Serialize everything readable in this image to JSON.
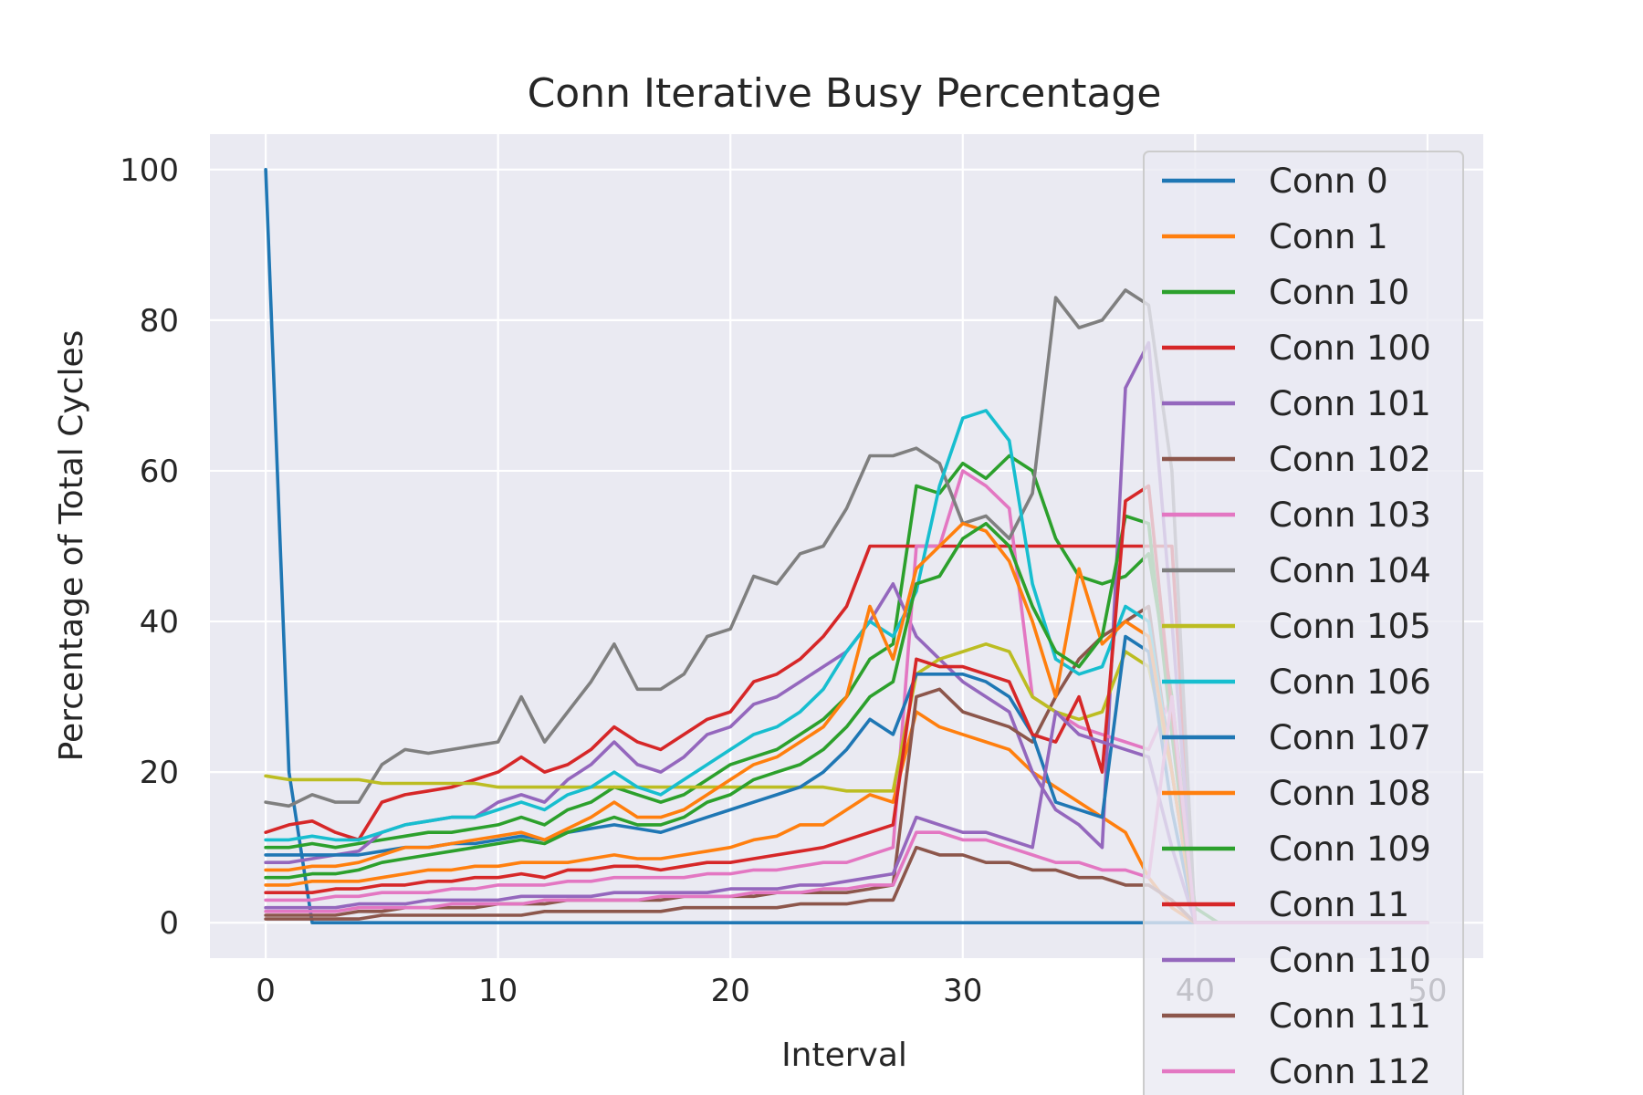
{
  "chart_data": {
    "type": "line",
    "title": "Conn Iterative Busy Percentage",
    "xlabel": "Interval",
    "ylabel": "Percentage of Total Cycles",
    "xlim": [
      -2.4,
      52.4
    ],
    "ylim": [
      -4.7,
      104.7
    ],
    "xticks": [
      0,
      10,
      20,
      30,
      40,
      50
    ],
    "yticks": [
      0,
      20,
      40,
      60,
      80,
      100
    ],
    "grid": true,
    "legend_position": "right",
    "x": [
      0,
      1,
      2,
      3,
      4,
      5,
      6,
      7,
      8,
      9,
      10,
      11,
      12,
      13,
      14,
      15,
      16,
      17,
      18,
      19,
      20,
      21,
      22,
      23,
      24,
      25,
      26,
      27,
      28,
      29,
      30,
      31,
      32,
      33,
      34,
      35,
      36,
      37,
      38,
      39,
      40,
      41,
      42,
      43,
      44,
      45,
      46,
      47,
      48,
      49,
      50
    ],
    "series": [
      {
        "name": "Conn 0",
        "color": "#1f77b4",
        "values": [
          100,
          20,
          0,
          0,
          0,
          0,
          0,
          0,
          0,
          0,
          0,
          0,
          0,
          0,
          0,
          0,
          0,
          0,
          0,
          0,
          0,
          0,
          0,
          0,
          0,
          0,
          0,
          0,
          0,
          0,
          0,
          0,
          0,
          0,
          0,
          0,
          0,
          0,
          0,
          0,
          0,
          0,
          0,
          0,
          0,
          0,
          0,
          0,
          0,
          0,
          0
        ]
      },
      {
        "name": "Conn 1",
        "color": "#ff7f0e",
        "values": [
          5,
          5,
          5.5,
          5.5,
          5.5,
          6,
          6.5,
          7,
          7,
          7.5,
          7.5,
          8,
          8,
          8,
          8.5,
          9,
          8.5,
          8.5,
          9,
          9.5,
          10,
          11,
          11.5,
          13,
          13,
          15,
          17,
          16,
          28,
          26,
          25,
          24,
          23,
          20,
          18,
          16,
          14,
          12,
          6,
          2,
          0,
          0,
          0,
          0,
          0,
          0,
          0,
          0,
          0,
          0,
          0
        ]
      },
      {
        "name": "Conn 10",
        "color": "#2ca02c",
        "values": [
          10,
          10,
          10.5,
          10,
          10.5,
          11,
          11.5,
          12,
          12,
          12.5,
          13,
          14,
          13,
          15,
          16,
          18,
          17,
          16,
          17,
          19,
          21,
          22,
          23,
          25,
          27,
          30,
          35,
          37,
          58,
          57,
          61,
          59,
          62,
          60,
          51,
          46,
          45,
          46,
          49,
          30,
          2,
          0,
          0,
          0,
          0,
          0,
          0,
          0,
          0,
          0,
          0
        ]
      },
      {
        "name": "Conn 100",
        "color": "#d62728",
        "values": [
          12,
          13,
          13.5,
          12,
          11,
          16,
          17,
          17.5,
          18,
          19,
          20,
          22,
          20,
          21,
          23,
          26,
          24,
          23,
          25,
          27,
          28,
          32,
          33,
          35,
          38,
          42,
          50,
          50,
          50,
          50,
          50,
          50,
          50,
          50,
          50,
          50,
          50,
          50,
          50,
          50,
          0,
          0,
          0,
          0,
          0,
          0,
          0,
          0,
          0,
          0,
          0
        ]
      },
      {
        "name": "Conn 101",
        "color": "#9467bd",
        "values": [
          8,
          8,
          8.5,
          9,
          9.5,
          12,
          13,
          13.5,
          14,
          14,
          16,
          17,
          16,
          19,
          21,
          24,
          21,
          20,
          22,
          25,
          26,
          29,
          30,
          32,
          34,
          36,
          40,
          45,
          38,
          35,
          32,
          30,
          28,
          20,
          15,
          13,
          10,
          71,
          77,
          40,
          0,
          0,
          0,
          0,
          0,
          0,
          0,
          0,
          0,
          0,
          0
        ]
      },
      {
        "name": "Conn 102",
        "color": "#8c564b",
        "values": [
          1,
          1,
          1,
          1,
          1.5,
          1.5,
          2,
          2,
          2,
          2,
          2.5,
          2.5,
          2.5,
          3,
          3,
          3,
          3,
          3,
          3.5,
          3.5,
          3.5,
          3.5,
          4,
          4,
          4,
          4,
          4.5,
          5,
          30,
          31,
          28,
          27,
          26,
          24,
          30,
          35,
          38,
          40,
          42,
          20,
          0,
          0,
          0,
          0,
          0,
          0,
          0,
          0,
          0,
          0,
          0
        ]
      },
      {
        "name": "Conn 103",
        "color": "#e377c2",
        "values": [
          3,
          3,
          3,
          3.5,
          3.5,
          4,
          4,
          4,
          4.5,
          4.5,
          5,
          5,
          5,
          5.5,
          5.5,
          6,
          6,
          6,
          6,
          6.5,
          6.5,
          7,
          7,
          7.5,
          8,
          8,
          9,
          10,
          50,
          50,
          60,
          58,
          55,
          30,
          28,
          26,
          25,
          24,
          23,
          30,
          0,
          0,
          0,
          0,
          0,
          0,
          0,
          0,
          0,
          0,
          0
        ]
      },
      {
        "name": "Conn 104",
        "color": "#7f7f7f",
        "values": [
          16,
          15.5,
          17,
          16,
          16,
          21,
          23,
          22.5,
          23,
          23.5,
          24,
          30,
          24,
          28,
          32,
          37,
          31,
          31,
          33,
          38,
          39,
          46,
          45,
          49,
          50,
          55,
          62,
          62,
          63,
          61,
          53,
          54,
          51,
          57,
          83,
          79,
          80,
          84,
          82,
          60,
          0,
          0,
          0,
          0,
          0,
          0,
          0,
          0,
          0,
          0,
          0
        ]
      },
      {
        "name": "Conn 105",
        "color": "#bcbd22",
        "values": [
          19.5,
          19,
          19,
          19,
          19,
          18.5,
          18.5,
          18.5,
          18.5,
          18.5,
          18,
          18,
          18,
          18,
          18,
          18,
          18,
          18,
          18,
          18,
          18,
          18,
          18,
          18,
          18,
          17.5,
          17.5,
          17.5,
          33,
          35,
          36,
          37,
          36,
          30,
          28,
          27,
          28,
          36,
          34,
          20,
          0,
          0,
          0,
          0,
          0,
          0,
          0,
          0,
          0,
          0,
          0
        ]
      },
      {
        "name": "Conn 106",
        "color": "#17becf",
        "values": [
          11,
          11,
          11.5,
          11,
          11,
          12,
          13,
          13.5,
          14,
          14,
          15,
          16,
          15,
          17,
          18,
          20,
          18,
          17,
          19,
          21,
          23,
          25,
          26,
          28,
          31,
          36,
          40,
          38,
          44,
          58,
          67,
          68,
          64,
          45,
          35,
          33,
          34,
          42,
          40,
          20,
          0,
          0,
          0,
          0,
          0,
          0,
          0,
          0,
          0,
          0,
          0
        ]
      },
      {
        "name": "Conn 107",
        "color": "#1f77b4",
        "values": [
          9,
          9,
          9,
          9,
          9,
          9.5,
          10,
          10,
          10.5,
          10.5,
          11,
          11.5,
          11,
          12,
          12.5,
          13,
          12.5,
          12,
          13,
          14,
          15,
          16,
          17,
          18,
          20,
          23,
          27,
          25,
          33,
          33,
          33,
          32,
          30,
          25,
          16,
          15,
          14,
          38,
          36,
          15,
          0,
          0,
          0,
          0,
          0,
          0,
          0,
          0,
          0,
          0,
          0
        ]
      },
      {
        "name": "Conn 108",
        "color": "#ff7f0e",
        "values": [
          7,
          7,
          7.5,
          7.5,
          8,
          9,
          10,
          10,
          10.5,
          11,
          11.5,
          12,
          11,
          12.5,
          14,
          16,
          14,
          14,
          15,
          17,
          19,
          21,
          22,
          24,
          26,
          30,
          42,
          35,
          47,
          50,
          53,
          52,
          48,
          40,
          30,
          47,
          37,
          40,
          38,
          20,
          0,
          0,
          0,
          0,
          0,
          0,
          0,
          0,
          0,
          0,
          0
        ]
      },
      {
        "name": "Conn 109",
        "color": "#2ca02c",
        "values": [
          6,
          6,
          6.5,
          6.5,
          7,
          8,
          8.5,
          9,
          9.5,
          10,
          10.5,
          11,
          10.5,
          12,
          13,
          14,
          13,
          13,
          14,
          16,
          17,
          19,
          20,
          21,
          23,
          26,
          30,
          32,
          45,
          46,
          51,
          53,
          50,
          42,
          36,
          34,
          38,
          54,
          53,
          25,
          0,
          0,
          0,
          0,
          0,
          0,
          0,
          0,
          0,
          0,
          0
        ]
      },
      {
        "name": "Conn 11",
        "color": "#d62728",
        "values": [
          4,
          4,
          4,
          4.5,
          4.5,
          5,
          5,
          5.5,
          5.5,
          6,
          6,
          6.5,
          6,
          7,
          7,
          7.5,
          7.5,
          7,
          7.5,
          8,
          8,
          8.5,
          9,
          9.5,
          10,
          11,
          12,
          13,
          35,
          34,
          34,
          33,
          32,
          25,
          24,
          30,
          20,
          56,
          58,
          28,
          0,
          0,
          0,
          0,
          0,
          0,
          0,
          0,
          0,
          0,
          0
        ]
      },
      {
        "name": "Conn 110",
        "color": "#9467bd",
        "values": [
          2,
          2,
          2,
          2,
          2.5,
          2.5,
          2.5,
          3,
          3,
          3,
          3,
          3.5,
          3.5,
          3.5,
          3.5,
          4,
          4,
          4,
          4,
          4,
          4.5,
          4.5,
          4.5,
          5,
          5,
          5.5,
          6,
          6.5,
          14,
          13,
          12,
          12,
          11,
          10,
          28,
          25,
          24,
          23,
          22,
          10,
          0,
          0,
          0,
          0,
          0,
          0,
          0,
          0,
          0,
          0,
          0
        ]
      },
      {
        "name": "Conn 111",
        "color": "#8c564b",
        "values": [
          0.5,
          0.5,
          0.5,
          0.5,
          0.5,
          1,
          1,
          1,
          1,
          1,
          1,
          1,
          1.5,
          1.5,
          1.5,
          1.5,
          1.5,
          1.5,
          2,
          2,
          2,
          2,
          2,
          2.5,
          2.5,
          2.5,
          3,
          3,
          10,
          9,
          9,
          8,
          8,
          7,
          7,
          6,
          6,
          5,
          5,
          3,
          0,
          0,
          0,
          0,
          0,
          0,
          0,
          0,
          0,
          0,
          0
        ]
      },
      {
        "name": "Conn 112",
        "color": "#e377c2",
        "values": [
          1.5,
          1.5,
          1.5,
          1.5,
          2,
          2,
          2,
          2,
          2.5,
          2.5,
          2.5,
          2.5,
          3,
          3,
          3,
          3,
          3,
          3.5,
          3.5,
          3.5,
          3.5,
          4,
          4,
          4,
          4.5,
          4.5,
          5,
          5,
          12,
          12,
          11,
          11,
          10,
          9,
          8,
          8,
          7,
          7,
          6,
          30,
          0,
          0,
          0,
          0,
          0,
          0,
          0,
          0,
          0,
          0,
          0
        ]
      }
    ]
  }
}
